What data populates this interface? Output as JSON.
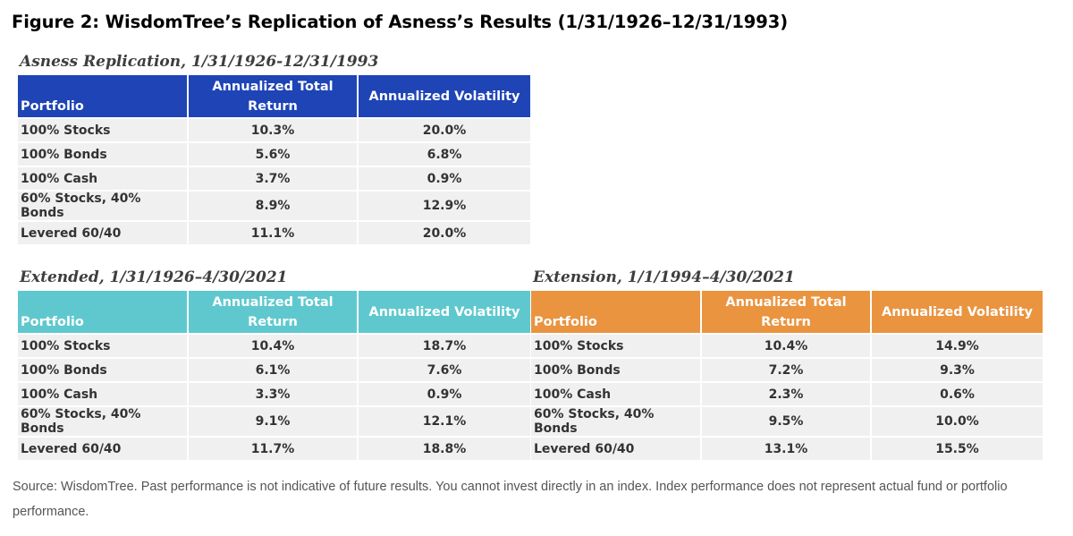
{
  "figure_title": "Figure 2: WisdomTree’s Replication of Asness’s Results (1/31/1926–12/31/1993)",
  "colors": {
    "asness_header": "#1e44b6",
    "extended_header": "#5fc8cf",
    "extension_header": "#ea9440",
    "row_bg": "#f0f0f0"
  },
  "tables": [
    {
      "title": "Asness Replication, 1/31/1926-12/31/1993",
      "headers": [
        "Portfolio",
        "Annualized Total Return",
        "Annualized Volatility"
      ],
      "rows": [
        [
          "100% Stocks",
          "10.3%",
          "20.0%"
        ],
        [
          "100% Bonds",
          "5.6%",
          "6.8%"
        ],
        [
          "100% Cash",
          "3.7%",
          "0.9%"
        ],
        [
          "60% Stocks, 40% Bonds",
          "8.9%",
          "12.9%"
        ],
        [
          "Levered 60/40",
          "11.1%",
          "20.0%"
        ]
      ]
    },
    {
      "title": "Extended, 1/31/1926–4/30/2021",
      "headers": [
        "Portfolio",
        "Annualized Total Return",
        "Annualized Volatility"
      ],
      "rows": [
        [
          "100% Stocks",
          "10.4%",
          "18.7%"
        ],
        [
          "100% Bonds",
          "6.1%",
          "7.6%"
        ],
        [
          "100% Cash",
          "3.3%",
          "0.9%"
        ],
        [
          "60% Stocks, 40% Bonds",
          "9.1%",
          "12.1%"
        ],
        [
          "Levered 60/40",
          "11.7%",
          "18.8%"
        ]
      ]
    },
    {
      "title": "Extension, 1/1/1994–4/30/2021",
      "headers": [
        "Portfolio",
        "Annualized Total Return",
        "Annualized Volatility"
      ],
      "rows": [
        [
          "100% Stocks",
          "10.4%",
          "14.9%"
        ],
        [
          "100% Bonds",
          "7.2%",
          "9.3%"
        ],
        [
          "100% Cash",
          "2.3%",
          "0.6%"
        ],
        [
          "60% Stocks, 40% Bonds",
          "9.5%",
          "10.0%"
        ],
        [
          "Levered 60/40",
          "13.1%",
          "15.5%"
        ]
      ]
    }
  ],
  "source": "Source: WisdomTree. Past performance is not indicative of future results. You cannot invest directly in an index. Index performance does not represent actual fund or portfolio performance."
}
